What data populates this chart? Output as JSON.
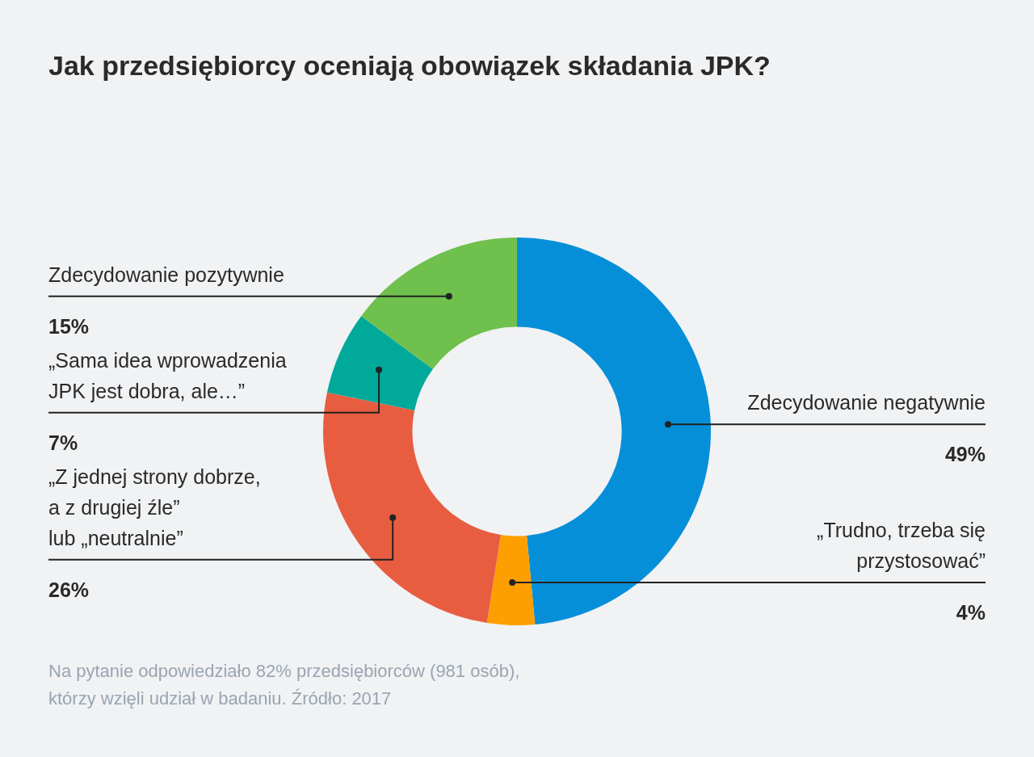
{
  "chart_data": {
    "type": "donut",
    "title": "Jak przedsiębiorcy oceniają obowiązek składania JPK?",
    "categories": [
      "Zdecydowanie negatywnie",
      "„Trudno, trzeba się\nprzystosować”",
      "„Z jednej strony dobrze,\na z drugiej źle”\nlub „neutralnie”",
      "„Sama idea wprowadzenia\nJPK jest dobra, ale…”",
      "Zdecydowanie pozytywnie"
    ],
    "values": [
      49,
      4,
      26,
      7,
      15
    ],
    "value_labels": [
      "49%",
      "4%",
      "26%",
      "7%",
      "15%"
    ],
    "colors": [
      "#068fd9",
      "#fd9f00",
      "#e85d40",
      "#00a99a",
      "#6fc04c"
    ],
    "legend": false,
    "annotations": [
      "Na pytanie odpowiedziało 82% przedsiębiorców (981 osób),\nktórzy wzięli udział w badaniu. Źródło: 2017"
    ]
  }
}
